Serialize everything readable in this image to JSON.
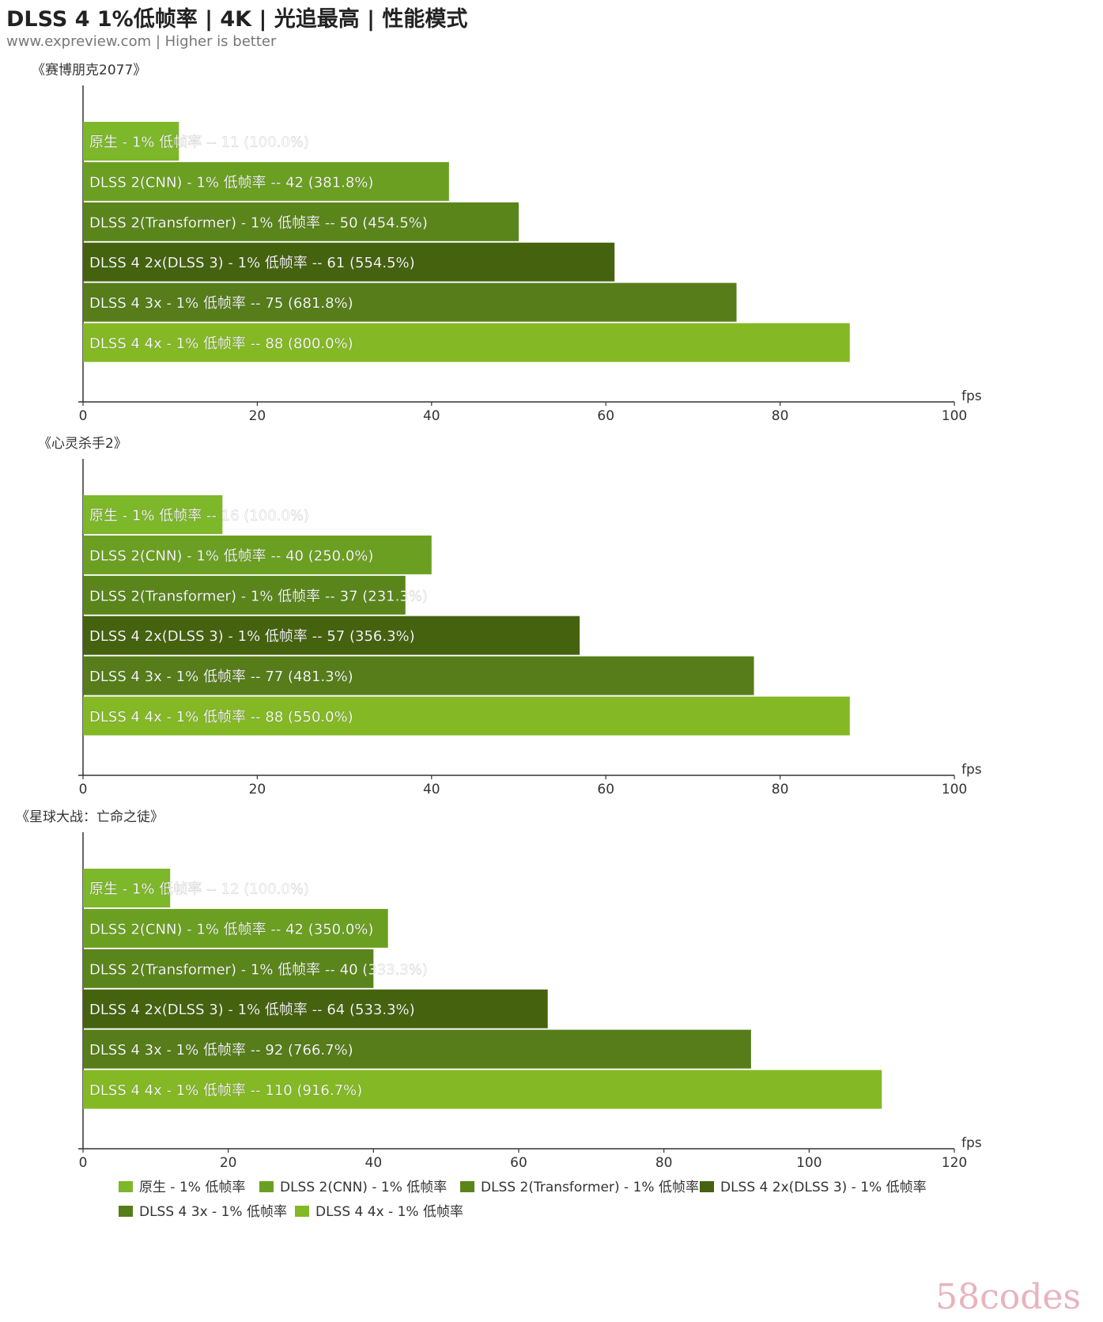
{
  "title": "DLSS 4 1%低帧率 | 4K | 光追最高 | 性能模式",
  "subtitle": "www.expreview.com | Higher is better",
  "watermark": "58codes",
  "colors": [
    "#7db72a",
    "#6b9f21",
    "#5a851b",
    "#45620f",
    "#567d1a",
    "#84b824"
  ],
  "chart_data": [
    {
      "type": "bar",
      "orientation": "horizontal",
      "title": "《赛博朋克2077》",
      "unit": "fps",
      "xlim": [
        0,
        100
      ],
      "ticks": [
        0,
        20,
        40,
        60,
        80,
        100
      ],
      "series": [
        {
          "name": "原生 - 1% 低帧率",
          "label": "原生 - 1% 低帧率 -- 11 (100.0%)",
          "value": 11
        },
        {
          "name": "DLSS 2(CNN) - 1% 低帧率",
          "label": "DLSS 2(CNN) - 1% 低帧率 -- 42 (381.8%)",
          "value": 42
        },
        {
          "name": "DLSS 2(Transformer) - 1% 低帧率",
          "label": "DLSS 2(Transformer) - 1% 低帧率 -- 50 (454.5%)",
          "value": 50
        },
        {
          "name": "DLSS 4 2x(DLSS 3) - 1% 低帧率",
          "label": "DLSS 4 2x(DLSS 3) - 1% 低帧率 -- 61 (554.5%)",
          "value": 61
        },
        {
          "name": "DLSS 4 3x - 1% 低帧率",
          "label": "DLSS 4 3x - 1% 低帧率 -- 75 (681.8%)",
          "value": 75
        },
        {
          "name": "DLSS 4 4x - 1% 低帧率",
          "label": "DLSS 4 4x - 1% 低帧率 -- 88 (800.0%)",
          "value": 88
        }
      ]
    },
    {
      "type": "bar",
      "orientation": "horizontal",
      "title": "《心灵杀手2》",
      "unit": "fps",
      "xlim": [
        0,
        100
      ],
      "ticks": [
        0,
        20,
        40,
        60,
        80,
        100
      ],
      "series": [
        {
          "name": "原生 - 1% 低帧率",
          "label": "原生 - 1% 低帧率 -- 16 (100.0%)",
          "value": 16
        },
        {
          "name": "DLSS 2(CNN) - 1% 低帧率",
          "label": "DLSS 2(CNN) - 1% 低帧率 -- 40 (250.0%)",
          "value": 40
        },
        {
          "name": "DLSS 2(Transformer) - 1% 低帧率",
          "label": "DLSS 2(Transformer) - 1% 低帧率 -- 37 (231.3%)",
          "value": 37
        },
        {
          "name": "DLSS 4 2x(DLSS 3) - 1% 低帧率",
          "label": "DLSS 4 2x(DLSS 3) - 1% 低帧率 -- 57 (356.3%)",
          "value": 57
        },
        {
          "name": "DLSS 4 3x - 1% 低帧率",
          "label": "DLSS 4 3x - 1% 低帧率 -- 77 (481.3%)",
          "value": 77
        },
        {
          "name": "DLSS 4 4x - 1% 低帧率",
          "label": "DLSS 4 4x - 1% 低帧率 -- 88 (550.0%)",
          "value": 88
        }
      ]
    },
    {
      "type": "bar",
      "orientation": "horizontal",
      "title": "《星球大战：亡命之徒》",
      "unit": "fps",
      "xlim": [
        0,
        120
      ],
      "ticks": [
        0,
        20,
        40,
        60,
        80,
        100,
        120
      ],
      "series": [
        {
          "name": "原生 - 1% 低帧率",
          "label": "原生 - 1% 低帧率 -- 12 (100.0%)",
          "value": 12
        },
        {
          "name": "DLSS 2(CNN) - 1% 低帧率",
          "label": "DLSS 2(CNN) - 1% 低帧率 -- 42 (350.0%)",
          "value": 42
        },
        {
          "name": "DLSS 2(Transformer) - 1% 低帧率",
          "label": "DLSS 2(Transformer) - 1% 低帧率 -- 40 (333.3%)",
          "value": 40
        },
        {
          "name": "DLSS 4 2x(DLSS 3) - 1% 低帧率",
          "label": "DLSS 4 2x(DLSS 3) - 1% 低帧率 -- 64 (533.3%)",
          "value": 64
        },
        {
          "name": "DLSS 4 3x - 1% 低帧率",
          "label": "DLSS 4 3x - 1% 低帧率 -- 92 (766.7%)",
          "value": 92
        },
        {
          "name": "DLSS 4 4x - 1% 低帧率",
          "label": "DLSS 4 4x - 1% 低帧率 -- 110 (916.7%)",
          "value": 110
        }
      ]
    }
  ],
  "legend": {
    "placement": "bottom",
    "items": [
      "原生 - 1% 低帧率",
      "DLSS 2(CNN) - 1% 低帧率",
      "DLSS 2(Transformer) - 1% 低帧率",
      "DLSS 4 2x(DLSS 3) - 1% 低帧率",
      "DLSS 4 3x - 1% 低帧率",
      "DLSS 4 4x - 1% 低帧率"
    ]
  }
}
